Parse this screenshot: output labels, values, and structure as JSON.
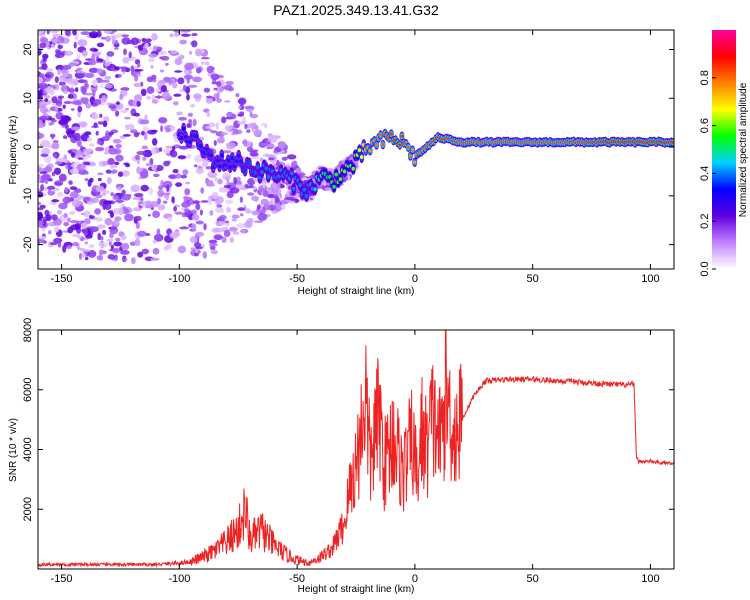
{
  "chart_data": [
    {
      "type": "heatmap",
      "title": "PAZ1.2025.349.13.41.G32",
      "xlabel": "Height of straight line (km)",
      "ylabel": "Frequency (Hz)",
      "xlim": [
        -160,
        110
      ],
      "ylim": [
        -25,
        24
      ],
      "xticks": [
        -150,
        -100,
        -50,
        0,
        50,
        100
      ],
      "xtick_labels": [
        "-150",
        "-100",
        "-50",
        "0",
        "50",
        "100"
      ],
      "yticks": [
        -20,
        -10,
        0,
        10,
        20
      ],
      "ytick_labels": [
        "-20",
        "-10",
        "0",
        "10",
        "20"
      ],
      "colorbar": {
        "label": "Normalized spectral amplitude",
        "range": [
          0,
          1
        ],
        "ticks": [
          0.0,
          0.2,
          0.4,
          0.6,
          0.8
        ],
        "tick_labels": [
          "0.0",
          "0.2",
          "0.4",
          "0.6",
          "0.8"
        ],
        "colors": [
          "#ffffff",
          "#c080ff",
          "#6000e0",
          "#0000ff",
          "#00d0ff",
          "#00ff00",
          "#ffff00",
          "#ff8000",
          "#ff0000",
          "#ff00a0"
        ]
      },
      "trace": {
        "x": [
          -155,
          -145,
          -135,
          -125,
          -115,
          -105,
          -95,
          -85,
          -75,
          -65,
          -55,
          -45,
          -40,
          -35,
          -30,
          -25,
          -20,
          -15,
          -10,
          -5,
          0,
          5,
          10,
          20,
          40,
          60,
          80,
          100,
          110
        ],
        "frequency": [
          4,
          2,
          0,
          1,
          -1,
          3,
          2,
          -3,
          -3,
          -5,
          -6,
          -9,
          -6,
          -7,
          -5,
          -3,
          0,
          1,
          2,
          1,
          -2,
          0,
          2,
          1,
          1,
          1,
          1,
          1,
          1
        ],
        "amplitude": [
          0.2,
          0.2,
          0.2,
          0.2,
          0.25,
          0.3,
          0.35,
          0.35,
          0.35,
          0.4,
          0.4,
          0.4,
          0.5,
          0.55,
          0.6,
          0.6,
          0.75,
          0.8,
          0.85,
          0.85,
          0.75,
          0.8,
          0.85,
          0.8,
          0.8,
          0.8,
          0.85,
          0.85,
          0.85
        ]
      }
    },
    {
      "type": "line",
      "xlabel": "Height of straight line (km)",
      "ylabel": "SNR (10 * v/v)",
      "xlim": [
        -160,
        110
      ],
      "ylim": [
        0,
        8000
      ],
      "xticks": [
        -150,
        -100,
        -50,
        0,
        50,
        100
      ],
      "xtick_labels": [
        "-150",
        "-100",
        "-50",
        "0",
        "50",
        "100"
      ],
      "yticks": [
        2000,
        4000,
        6000,
        8000
      ],
      "ytick_labels": [
        "2000",
        "4000",
        "6000",
        "8000"
      ],
      "color": "#ee2222",
      "series": [
        {
          "name": "SNR",
          "x": [
            -160,
            -150,
            -140,
            -130,
            -120,
            -110,
            -100,
            -95,
            -90,
            -85,
            -80,
            -75,
            -72,
            -70,
            -65,
            -60,
            -55,
            -50,
            -45,
            -40,
            -35,
            -32,
            -30,
            -28,
            -25,
            -23,
            -21,
            -19,
            -17,
            -15,
            -13,
            -11,
            -9,
            -7,
            -5,
            -3,
            -1,
            1,
            3,
            5,
            7,
            9,
            11,
            13,
            15,
            17,
            20,
            25,
            30,
            40,
            50,
            60,
            70,
            80,
            90,
            93,
            94,
            95,
            100,
            105,
            110
          ],
          "y": [
            150,
            150,
            150,
            150,
            150,
            150,
            200,
            250,
            400,
            600,
            900,
            1300,
            2000,
            1000,
            1300,
            800,
            500,
            300,
            200,
            400,
            700,
            1200,
            1500,
            2500,
            3500,
            4500,
            6000,
            3500,
            4500,
            5200,
            3500,
            4000,
            4500,
            3800,
            3200,
            3800,
            4300,
            3000,
            4600,
            4000,
            5000,
            4800,
            4200,
            5800,
            5200,
            4500,
            5000,
            5800,
            6300,
            6350,
            6350,
            6300,
            6250,
            6200,
            6150,
            6200,
            3800,
            3600,
            3600,
            3550,
            3550
          ]
        }
      ]
    }
  ]
}
